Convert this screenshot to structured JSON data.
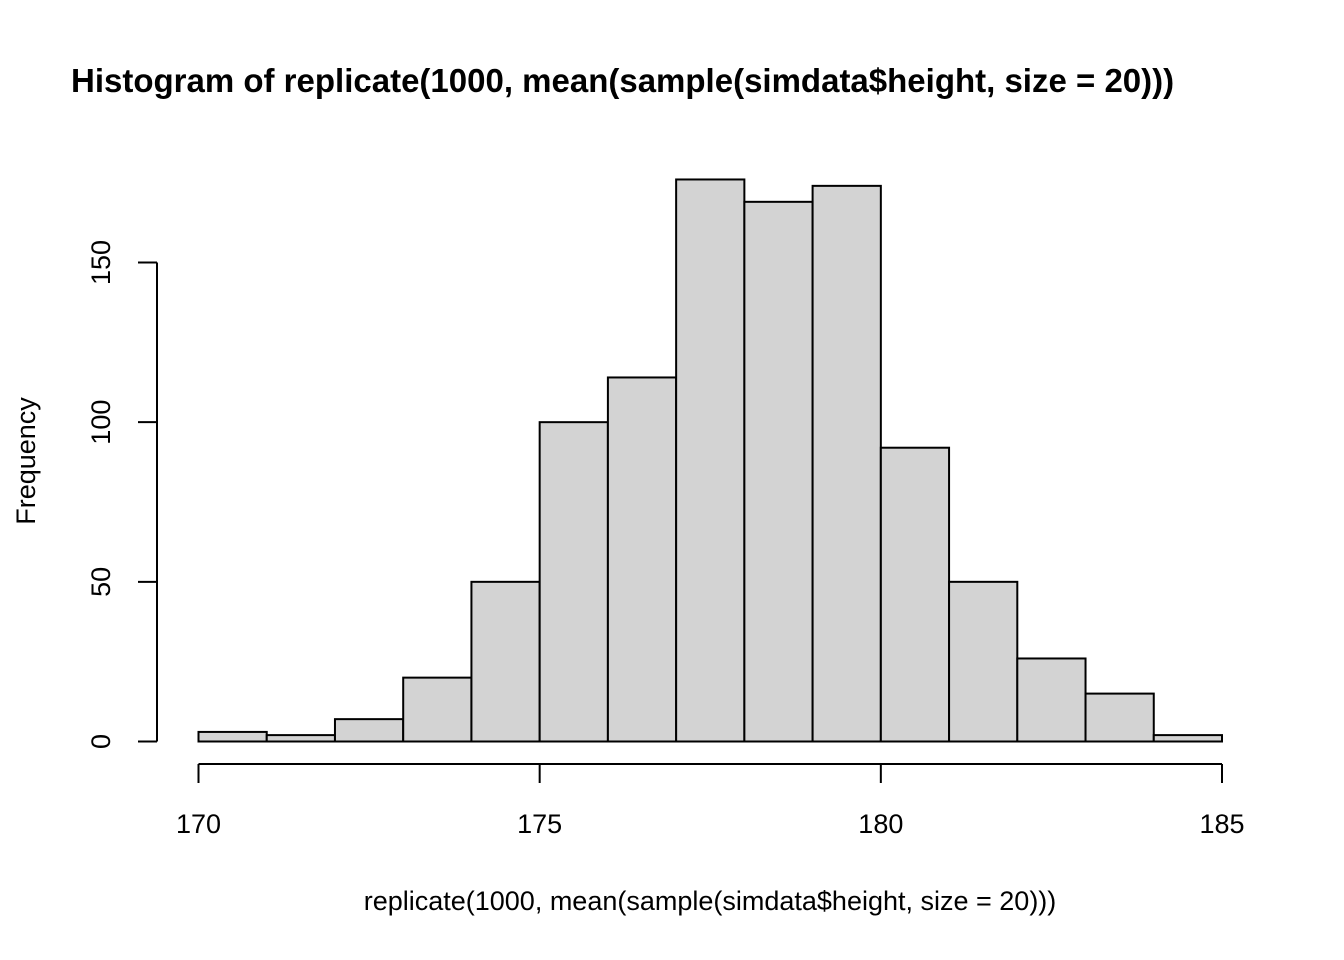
{
  "chart_data": {
    "type": "bar",
    "title": "Histogram of replicate(1000, mean(sample(simdata$height, size = 20)))",
    "xlabel": "replicate(1000, mean(sample(simdata$height, size = 20)))",
    "ylabel": "Frequency",
    "bins": [
      {
        "x0": 170,
        "x1": 171,
        "count": 3
      },
      {
        "x0": 171,
        "x1": 172,
        "count": 2
      },
      {
        "x0": 172,
        "x1": 173,
        "count": 7
      },
      {
        "x0": 173,
        "x1": 174,
        "count": 20
      },
      {
        "x0": 174,
        "x1": 175,
        "count": 50
      },
      {
        "x0": 175,
        "x1": 176,
        "count": 100
      },
      {
        "x0": 176,
        "x1": 177,
        "count": 114
      },
      {
        "x0": 177,
        "x1": 178,
        "count": 176
      },
      {
        "x0": 178,
        "x1": 179,
        "count": 169
      },
      {
        "x0": 179,
        "x1": 180,
        "count": 174
      },
      {
        "x0": 180,
        "x1": 181,
        "count": 92
      },
      {
        "x0": 181,
        "x1": 182,
        "count": 50
      },
      {
        "x0": 182,
        "x1": 183,
        "count": 26
      },
      {
        "x0": 183,
        "x1": 184,
        "count": 15
      },
      {
        "x0": 184,
        "x1": 185,
        "count": 2
      }
    ],
    "xlim": [
      170,
      185
    ],
    "ylim": [
      0,
      176
    ],
    "x_ticks": [
      170,
      175,
      180,
      185
    ],
    "y_ticks": [
      0,
      50,
      100,
      150
    ],
    "grid": false,
    "colors": {
      "bar_fill": "#d3d3d3",
      "bar_stroke": "#000000"
    }
  }
}
